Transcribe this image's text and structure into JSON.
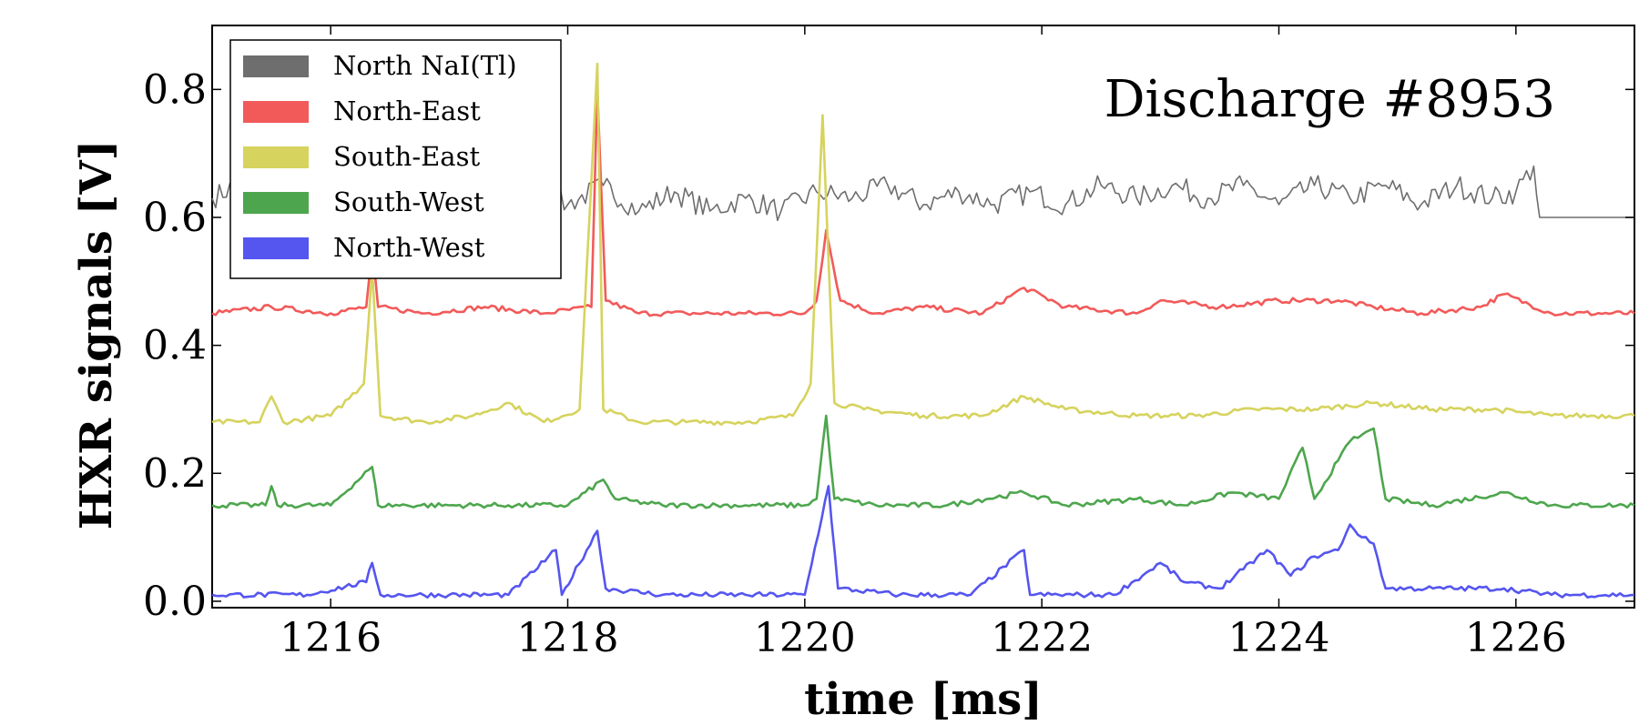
{
  "chart_data": {
    "type": "line",
    "title": "",
    "xlabel": "time [ms]",
    "ylabel": "HXR signals [V]",
    "xlim": [
      1215,
      1227
    ],
    "ylim": [
      -0.01,
      0.9
    ],
    "xticks": [
      1216,
      1218,
      1220,
      1222,
      1224,
      1226
    ],
    "xtick_labels": [
      "1216",
      "1218",
      "1220",
      "1222",
      "1224",
      "1226"
    ],
    "yticks": [
      0.0,
      0.2,
      0.4,
      0.6,
      0.8
    ],
    "ytick_labels": [
      "0.0",
      "0.2",
      "0.4",
      "0.6",
      "0.8"
    ],
    "grid": false,
    "legend_position": "top-left",
    "annotation": "Discharge #8953",
    "series": [
      {
        "name": "North NaI(Tl)",
        "color": "#6e6e6e",
        "baseline": 0.61,
        "points": [
          [
            1215.0,
            0.63
          ],
          [
            1215.3,
            0.66
          ],
          [
            1215.6,
            0.61
          ],
          [
            1215.9,
            0.64
          ],
          [
            1216.2,
            0.62
          ],
          [
            1216.5,
            0.65
          ],
          [
            1216.8,
            0.61
          ],
          [
            1217.1,
            0.64
          ],
          [
            1217.4,
            0.62
          ],
          [
            1217.7,
            0.64
          ],
          [
            1218.0,
            0.62
          ],
          [
            1218.3,
            0.65
          ],
          [
            1218.6,
            0.61
          ],
          [
            1218.9,
            0.64
          ],
          [
            1219.2,
            0.61
          ],
          [
            1219.5,
            0.63
          ],
          [
            1219.8,
            0.61
          ],
          [
            1220.1,
            0.64
          ],
          [
            1220.4,
            0.63
          ],
          [
            1220.7,
            0.65
          ],
          [
            1221.0,
            0.62
          ],
          [
            1221.3,
            0.64
          ],
          [
            1221.6,
            0.62
          ],
          [
            1221.9,
            0.64
          ],
          [
            1222.2,
            0.62
          ],
          [
            1222.5,
            0.65
          ],
          [
            1222.8,
            0.63
          ],
          [
            1223.1,
            0.65
          ],
          [
            1223.4,
            0.63
          ],
          [
            1223.7,
            0.65
          ],
          [
            1224.0,
            0.62
          ],
          [
            1224.3,
            0.65
          ],
          [
            1224.6,
            0.63
          ],
          [
            1224.9,
            0.65
          ],
          [
            1225.2,
            0.62
          ],
          [
            1225.5,
            0.65
          ],
          [
            1225.8,
            0.63
          ],
          [
            1226.0,
            0.64
          ],
          [
            1226.15,
            0.68
          ],
          [
            1226.2,
            0.6
          ],
          [
            1227.0,
            0.6
          ]
        ]
      },
      {
        "name": "North-East",
        "color": "#f25a5a",
        "baseline": 0.45,
        "points": [
          [
            1215.0,
            0.45
          ],
          [
            1215.5,
            0.46
          ],
          [
            1216.0,
            0.45
          ],
          [
            1216.3,
            0.46
          ],
          [
            1216.35,
            0.55
          ],
          [
            1216.4,
            0.46
          ],
          [
            1216.8,
            0.45
          ],
          [
            1217.3,
            0.46
          ],
          [
            1217.8,
            0.45
          ],
          [
            1218.2,
            0.46
          ],
          [
            1218.25,
            0.8
          ],
          [
            1218.32,
            0.47
          ],
          [
            1218.6,
            0.45
          ],
          [
            1219.0,
            0.45
          ],
          [
            1219.5,
            0.45
          ],
          [
            1220.0,
            0.45
          ],
          [
            1220.1,
            0.47
          ],
          [
            1220.18,
            0.58
          ],
          [
            1220.3,
            0.47
          ],
          [
            1220.6,
            0.45
          ],
          [
            1221.0,
            0.46
          ],
          [
            1221.5,
            0.45
          ],
          [
            1221.85,
            0.49
          ],
          [
            1222.2,
            0.46
          ],
          [
            1222.8,
            0.45
          ],
          [
            1223.0,
            0.47
          ],
          [
            1223.5,
            0.46
          ],
          [
            1224.0,
            0.47
          ],
          [
            1224.5,
            0.47
          ],
          [
            1224.8,
            0.46
          ],
          [
            1225.2,
            0.45
          ],
          [
            1225.7,
            0.46
          ],
          [
            1225.9,
            0.48
          ],
          [
            1226.3,
            0.45
          ],
          [
            1227.0,
            0.45
          ]
        ]
      },
      {
        "name": "South-East",
        "color": "#d6d35e",
        "baseline": 0.28,
        "points": [
          [
            1215.0,
            0.28
          ],
          [
            1215.4,
            0.28
          ],
          [
            1215.5,
            0.32
          ],
          [
            1215.6,
            0.28
          ],
          [
            1216.0,
            0.29
          ],
          [
            1216.28,
            0.34
          ],
          [
            1216.35,
            0.52
          ],
          [
            1216.42,
            0.29
          ],
          [
            1216.8,
            0.28
          ],
          [
            1217.2,
            0.29
          ],
          [
            1217.5,
            0.31
          ],
          [
            1217.8,
            0.28
          ],
          [
            1218.1,
            0.3
          ],
          [
            1218.25,
            0.84
          ],
          [
            1218.3,
            0.3
          ],
          [
            1218.6,
            0.28
          ],
          [
            1219.0,
            0.28
          ],
          [
            1219.5,
            0.28
          ],
          [
            1219.9,
            0.29
          ],
          [
            1220.05,
            0.34
          ],
          [
            1220.15,
            0.76
          ],
          [
            1220.25,
            0.31
          ],
          [
            1220.5,
            0.3
          ],
          [
            1221.0,
            0.29
          ],
          [
            1221.5,
            0.29
          ],
          [
            1221.85,
            0.32
          ],
          [
            1222.2,
            0.3
          ],
          [
            1222.8,
            0.29
          ],
          [
            1223.3,
            0.29
          ],
          [
            1223.8,
            0.3
          ],
          [
            1224.3,
            0.3
          ],
          [
            1224.8,
            0.31
          ],
          [
            1225.3,
            0.3
          ],
          [
            1225.8,
            0.3
          ],
          [
            1226.3,
            0.29
          ],
          [
            1227.0,
            0.29
          ]
        ]
      },
      {
        "name": "South-West",
        "color": "#4da64d",
        "baseline": 0.15,
        "points": [
          [
            1215.0,
            0.15
          ],
          [
            1215.45,
            0.15
          ],
          [
            1215.5,
            0.18
          ],
          [
            1215.55,
            0.15
          ],
          [
            1216.0,
            0.15
          ],
          [
            1216.35,
            0.21
          ],
          [
            1216.4,
            0.15
          ],
          [
            1217.0,
            0.15
          ],
          [
            1217.5,
            0.15
          ],
          [
            1218.0,
            0.15
          ],
          [
            1218.3,
            0.19
          ],
          [
            1218.4,
            0.16
          ],
          [
            1218.8,
            0.15
          ],
          [
            1219.5,
            0.15
          ],
          [
            1220.0,
            0.15
          ],
          [
            1220.1,
            0.16
          ],
          [
            1220.18,
            0.29
          ],
          [
            1220.25,
            0.16
          ],
          [
            1220.6,
            0.15
          ],
          [
            1221.2,
            0.15
          ],
          [
            1221.85,
            0.17
          ],
          [
            1222.2,
            0.15
          ],
          [
            1222.8,
            0.16
          ],
          [
            1223.2,
            0.15
          ],
          [
            1223.6,
            0.17
          ],
          [
            1224.0,
            0.16
          ],
          [
            1224.2,
            0.24
          ],
          [
            1224.3,
            0.16
          ],
          [
            1224.5,
            0.22
          ],
          [
            1224.6,
            0.25
          ],
          [
            1224.7,
            0.26
          ],
          [
            1224.8,
            0.27
          ],
          [
            1224.9,
            0.16
          ],
          [
            1225.3,
            0.15
          ],
          [
            1225.9,
            0.17
          ],
          [
            1226.3,
            0.15
          ],
          [
            1227.0,
            0.15
          ]
        ]
      },
      {
        "name": "North-West",
        "color": "#5555f0",
        "baseline": 0.01,
        "points": [
          [
            1215.0,
            0.01
          ],
          [
            1215.8,
            0.01
          ],
          [
            1216.3,
            0.03
          ],
          [
            1216.35,
            0.06
          ],
          [
            1216.42,
            0.01
          ],
          [
            1217.0,
            0.01
          ],
          [
            1217.5,
            0.01
          ],
          [
            1217.9,
            0.08
          ],
          [
            1217.95,
            0.01
          ],
          [
            1218.25,
            0.11
          ],
          [
            1218.32,
            0.02
          ],
          [
            1218.8,
            0.01
          ],
          [
            1219.5,
            0.01
          ],
          [
            1220.0,
            0.01
          ],
          [
            1220.2,
            0.18
          ],
          [
            1220.28,
            0.02
          ],
          [
            1220.8,
            0.01
          ],
          [
            1221.4,
            0.01
          ],
          [
            1221.85,
            0.08
          ],
          [
            1221.9,
            0.01
          ],
          [
            1222.6,
            0.01
          ],
          [
            1222.85,
            0.04
          ],
          [
            1223.0,
            0.06
          ],
          [
            1223.2,
            0.03
          ],
          [
            1223.5,
            0.02
          ],
          [
            1223.7,
            0.05
          ],
          [
            1223.9,
            0.08
          ],
          [
            1224.1,
            0.04
          ],
          [
            1224.3,
            0.07
          ],
          [
            1224.5,
            0.08
          ],
          [
            1224.6,
            0.12
          ],
          [
            1224.7,
            0.1
          ],
          [
            1224.8,
            0.09
          ],
          [
            1224.9,
            0.02
          ],
          [
            1225.3,
            0.02
          ],
          [
            1225.9,
            0.02
          ],
          [
            1226.3,
            0.01
          ],
          [
            1227.0,
            0.01
          ]
        ]
      }
    ]
  }
}
